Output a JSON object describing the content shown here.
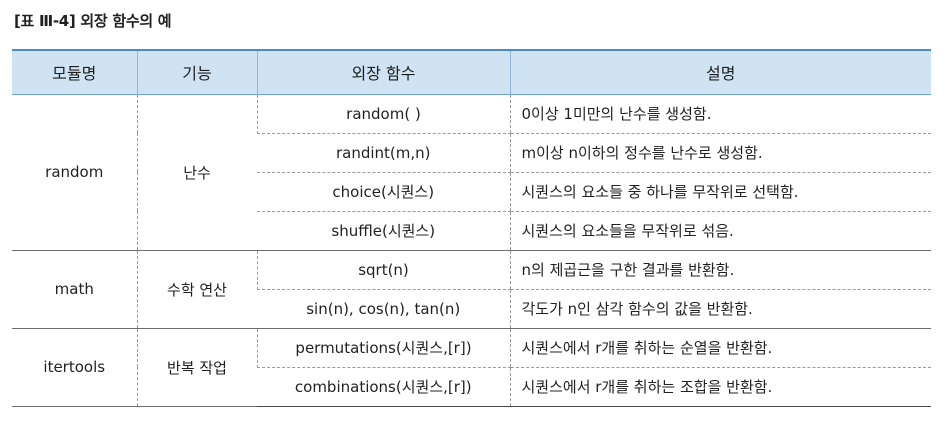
{
  "caption": "[표 Ⅲ-4] 외장 함수의 예",
  "table": {
    "headers": [
      "모듈명",
      "기능",
      "외장 함수",
      "설명"
    ],
    "groups": [
      {
        "module": "random",
        "feature": "난수",
        "rows": [
          {
            "function": "random( )",
            "description": "0이상 1미만의 난수를 생성함."
          },
          {
            "function": "randint(m,n)",
            "description": "m이상 n이하의 정수를 난수로 생성함."
          },
          {
            "function": "choice(시퀀스)",
            "description": "시퀀스의 요소들 중 하나를 무작위로 선택함."
          },
          {
            "function": "shuffle(시퀀스)",
            "description": "시퀀스의 요소들을 무작위로 섞음."
          }
        ]
      },
      {
        "module": "math",
        "feature": "수학 연산",
        "rows": [
          {
            "function": "sqrt(n)",
            "description": "n의 제곱근을 구한 결과를 반환함."
          },
          {
            "function": "sin(n), cos(n), tan(n)",
            "description": "각도가 n인 삼각 함수의 값을 반환함."
          }
        ]
      },
      {
        "module": "itertools",
        "feature": "반복 작업",
        "rows": [
          {
            "function": "permutations(시퀀스,[r])",
            "description": "시퀀스에서 r개를 취하는 순열을 반환함."
          },
          {
            "function": "combinations(시퀀스,[r])",
            "description": "시퀀스에서 r개를 취하는 조합을 반환함."
          }
        ]
      }
    ]
  }
}
